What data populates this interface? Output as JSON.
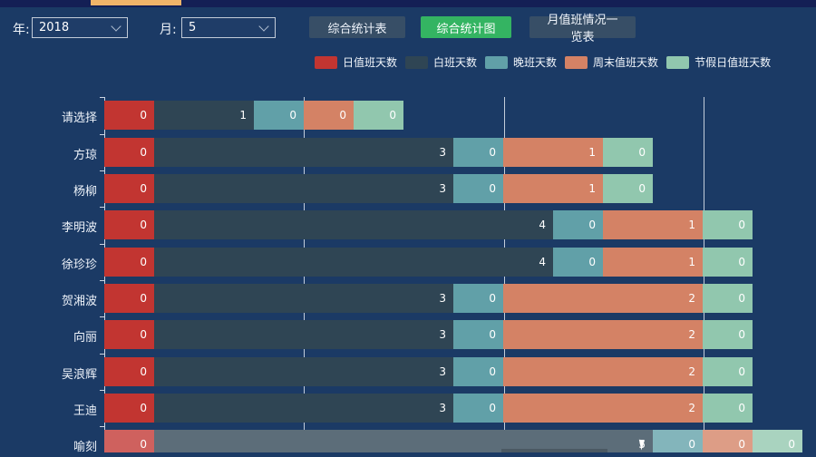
{
  "window": {
    "top_progress_bar": {
      "color": "#f0b469"
    }
  },
  "toolbar": {
    "year_label": "年:",
    "year_value": "2018",
    "month_label": "月:",
    "month_value": "5",
    "buttons": [
      {
        "label": "综合统计表",
        "active": false
      },
      {
        "label": "综合统计图",
        "active": true
      },
      {
        "label": "月值班情况一览表",
        "active": false
      }
    ],
    "active_button_color": "#34b462",
    "inactive_button_color": "#374e66"
  },
  "chart_data": {
    "type": "bar",
    "orientation": "horizontal",
    "stacked": true,
    "legend_position": "top",
    "grid": true,
    "value_label_position": "inside-right",
    "series": [
      {
        "name": "日值班天数",
        "color": "#c23531"
      },
      {
        "name": "白班天数",
        "color": "#2f4554"
      },
      {
        "name": "晚班天数",
        "color": "#61a0a8"
      },
      {
        "name": "周末值班天数",
        "color": "#d48265"
      },
      {
        "name": "节假日值班天数",
        "color": "#91c7ae"
      }
    ],
    "categories": [
      "请选择",
      "方琼",
      "杨柳",
      "李明波",
      "徐珍珍",
      "贺湘波",
      "向丽",
      "吴浪辉",
      "王迪",
      "喻刻"
    ],
    "rows": [
      {
        "name": "请选择",
        "values": [
          0,
          1,
          0,
          0,
          0
        ],
        "highlighted": false
      },
      {
        "name": "方琼",
        "values": [
          0,
          3,
          0,
          1,
          0
        ],
        "highlighted": false
      },
      {
        "name": "杨柳",
        "values": [
          0,
          3,
          0,
          1,
          0
        ],
        "highlighted": false
      },
      {
        "name": "李明波",
        "values": [
          0,
          4,
          0,
          1,
          0
        ],
        "highlighted": false
      },
      {
        "name": "徐珍珍",
        "values": [
          0,
          4,
          0,
          1,
          0
        ],
        "highlighted": false
      },
      {
        "name": "贺湘波",
        "values": [
          0,
          3,
          0,
          2,
          0
        ],
        "highlighted": false
      },
      {
        "name": "向丽",
        "values": [
          0,
          3,
          0,
          2,
          0
        ],
        "highlighted": false
      },
      {
        "name": "吴浪辉",
        "values": [
          0,
          3,
          0,
          2,
          0
        ],
        "highlighted": false
      },
      {
        "name": "王迪",
        "values": [
          0,
          3,
          0,
          2,
          0
        ],
        "highlighted": false
      },
      {
        "name": "喻刻",
        "values": [
          0,
          5,
          0,
          0,
          0
        ],
        "highlighted": true
      }
    ],
    "x_axis": {
      "gridlines_visible": 3,
      "labels_visible": false
    },
    "note_last_row_cut_off_at_bottom": true
  },
  "colors": {
    "background": "#1b3a65",
    "top_strip": "#141f55",
    "gridline": "#e0e8f0",
    "text": "#f2f6fb"
  }
}
